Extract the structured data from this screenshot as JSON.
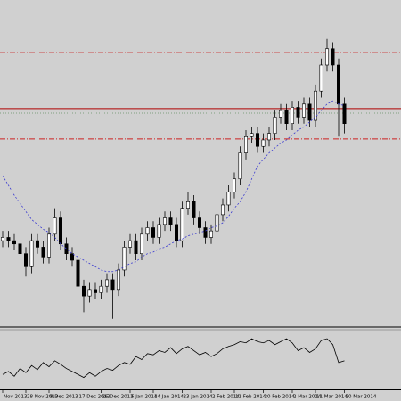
{
  "chart_data": [
    {
      "type": "candlestick",
      "ylim": [
        0,
        100
      ],
      "up_color": "#ffffff",
      "down_color": "#000000",
      "edge_color": "#000000",
      "categories": [
        "Nov 2013",
        null,
        null,
        null,
        "28 Nov 2013",
        null,
        null,
        null,
        "8 Dec 2013",
        null,
        null,
        null,
        null,
        "17 Dec 2013",
        null,
        null,
        null,
        "26 Dec 2013",
        null,
        null,
        null,
        null,
        "5 Jan 2014",
        null,
        null,
        null,
        "14 Jan 2014",
        null,
        null,
        null,
        null,
        "23 Jan 2014",
        null,
        null,
        null,
        null,
        "2 Feb 2014",
        null,
        null,
        null,
        "11 Feb 2014",
        null,
        null,
        null,
        null,
        "20 Feb 2014",
        null,
        null,
        null,
        null,
        "2 Mar 2014",
        null,
        null,
        null,
        "11 Mar 2014",
        null,
        null,
        null,
        null,
        "20 Mar 2014"
      ],
      "open": [
        26,
        27,
        26,
        25,
        22,
        18,
        26,
        24,
        21,
        28,
        33,
        25,
        22,
        20,
        12,
        9,
        11,
        10,
        12,
        14,
        11,
        17,
        24,
        26,
        22,
        28,
        30,
        27,
        31,
        33,
        31,
        26,
        36,
        38,
        33,
        30,
        27,
        29,
        34,
        37,
        41,
        45,
        53,
        58,
        59,
        55,
        57,
        59,
        64,
        66,
        62,
        67,
        64,
        68,
        63,
        72,
        80,
        85,
        80,
        68
      ],
      "high": [
        29,
        29,
        28,
        27,
        24,
        28,
        28,
        26,
        30,
        36,
        35,
        27,
        24,
        22,
        14,
        13,
        13,
        14,
        16,
        16,
        19,
        26,
        28,
        28,
        30,
        32,
        32,
        33,
        35,
        35,
        33,
        38,
        41,
        40,
        35,
        32,
        31,
        36,
        39,
        43,
        47,
        55,
        60,
        61,
        61,
        59,
        61,
        66,
        68,
        68,
        69,
        69,
        70,
        70,
        74,
        82,
        88,
        87,
        82,
        70
      ],
      "low": [
        24,
        24,
        23,
        20,
        15,
        16,
        22,
        19,
        19,
        26,
        23,
        20,
        18,
        4,
        4,
        7,
        8,
        8,
        10,
        2,
        9,
        15,
        22,
        20,
        20,
        26,
        25,
        25,
        29,
        29,
        24,
        24,
        34,
        31,
        28,
        25,
        25,
        27,
        32,
        35,
        39,
        43,
        51,
        56,
        53,
        53,
        55,
        57,
        62,
        60,
        60,
        62,
        62,
        61,
        61,
        70,
        78,
        78,
        58,
        59
      ],
      "close": [
        27,
        26,
        25,
        22,
        18,
        26,
        24,
        21,
        28,
        33,
        25,
        22,
        20,
        12,
        9,
        11,
        10,
        12,
        14,
        11,
        17,
        24,
        26,
        22,
        28,
        30,
        27,
        31,
        33,
        31,
        26,
        36,
        38,
        33,
        30,
        27,
        29,
        34,
        37,
        41,
        45,
        53,
        58,
        59,
        55,
        57,
        59,
        64,
        66,
        62,
        67,
        64,
        68,
        63,
        72,
        80,
        85,
        80,
        68,
        62
      ],
      "overlay": {
        "color": "#3a3ad0",
        "style": "dashed",
        "values": [
          46,
          43,
          40,
          37.5,
          35,
          32.5,
          31,
          29.5,
          28.5,
          27,
          25,
          23.5,
          22,
          21,
          20,
          19,
          18,
          17,
          16.5,
          16.5,
          17,
          18,
          19,
          19.5,
          21,
          22,
          22.5,
          23.5,
          24,
          25,
          26,
          26.5,
          27.5,
          28,
          28.5,
          29,
          30,
          30.5,
          31.5,
          33.5,
          36,
          38,
          41,
          45,
          49,
          51,
          53,
          54.5,
          56,
          57,
          58.5,
          60,
          61,
          62.5,
          64,
          66,
          68,
          69,
          68,
          67.5
        ]
      },
      "levels": [
        {
          "value": 83.8,
          "color": "#cc2020",
          "style": "dashdot"
        },
        {
          "value": 66.6,
          "color": "#b00000",
          "style": "solid"
        },
        {
          "value": 65.2,
          "color": "#80a080",
          "style": "dotted"
        },
        {
          "value": 57.3,
          "color": "#cc2020",
          "style": "dashdot"
        }
      ]
    },
    {
      "type": "line",
      "ylim": [
        0,
        100
      ],
      "color": "#000000",
      "values": [
        25,
        30,
        22,
        35,
        28,
        40,
        33,
        45,
        38,
        48,
        42,
        35,
        30,
        25,
        20,
        28,
        22,
        30,
        35,
        32,
        40,
        45,
        42,
        55,
        50,
        60,
        58,
        65,
        62,
        70,
        60,
        68,
        72,
        65,
        58,
        62,
        55,
        60,
        68,
        72,
        75,
        80,
        78,
        85,
        80,
        78,
        82,
        75,
        80,
        85,
        78,
        65,
        70,
        62,
        68,
        82,
        85,
        75,
        45,
        48
      ]
    }
  ]
}
